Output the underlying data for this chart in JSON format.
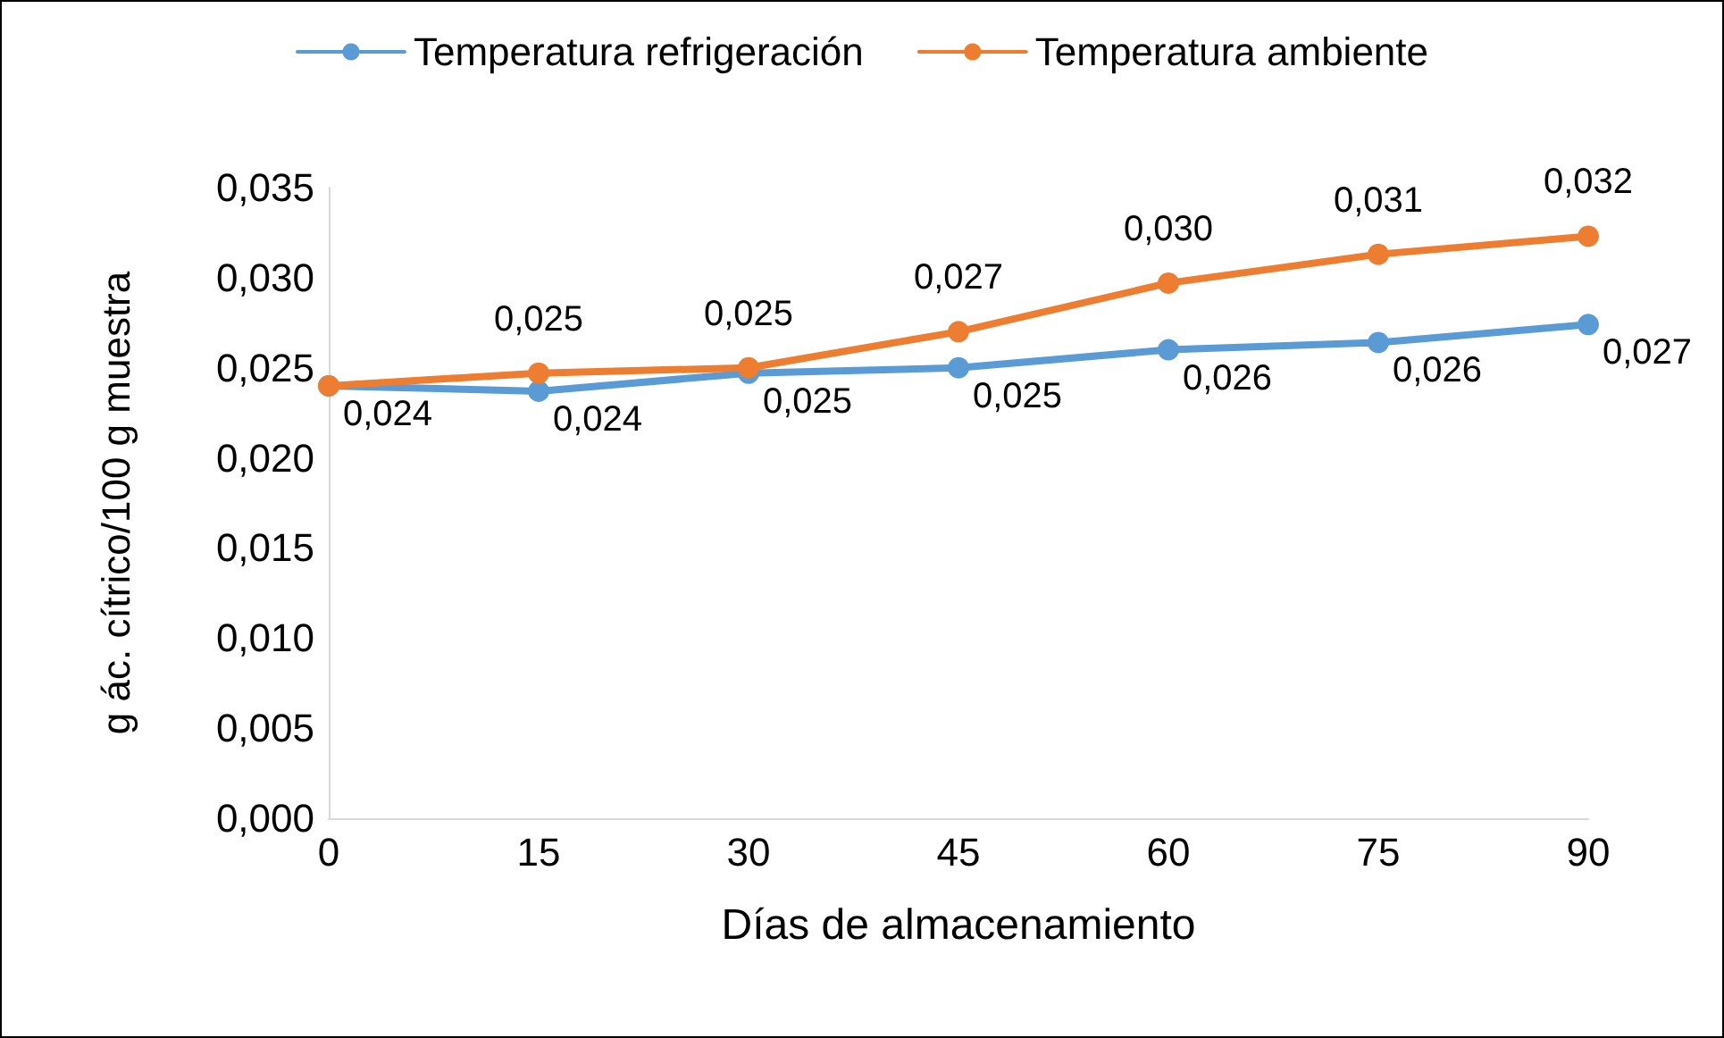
{
  "chart_data": {
    "type": "line",
    "xlabel": "Días de almacenamiento",
    "ylabel": "g ác. cítrico/100 g muestra",
    "x": [
      0,
      15,
      30,
      45,
      60,
      75,
      90
    ],
    "xlim": [
      0,
      90
    ],
    "xticks": [
      0,
      15,
      30,
      45,
      60,
      75,
      90
    ],
    "ylim": [
      0,
      0.035
    ],
    "yticks": [
      {
        "value": 0,
        "label": "0,000"
      },
      {
        "value": 0.005,
        "label": "0,005"
      },
      {
        "value": 0.01,
        "label": "0,010"
      },
      {
        "value": 0.015,
        "label": "0,015"
      },
      {
        "value": 0.02,
        "label": "0,020"
      },
      {
        "value": 0.025,
        "label": "0,025"
      },
      {
        "value": 0.03,
        "label": "0,030"
      },
      {
        "value": 0.035,
        "label": "0,035"
      }
    ],
    "series": [
      {
        "name": "Temperatura refrigeración",
        "color": "#5b9bd5",
        "values": [
          0.024,
          0.0237,
          0.0247,
          0.025,
          0.026,
          0.0264,
          0.0274
        ],
        "value_labels": [
          "0,024",
          "0,024",
          "0,025",
          "0,025",
          "0,026",
          "0,026",
          "0,027"
        ]
      },
      {
        "name": "Temperatura ambiente",
        "color": "#ed7d31",
        "values": [
          0.024,
          0.0247,
          0.025,
          0.027,
          0.0297,
          0.0313,
          0.0323
        ],
        "value_labels": [
          null,
          "0,025",
          "0,025",
          "0,027",
          "0,030",
          "0,031",
          "0,032"
        ]
      }
    ],
    "grid": false,
    "legend": "top",
    "marker": "circle",
    "line_style": "solid"
  }
}
